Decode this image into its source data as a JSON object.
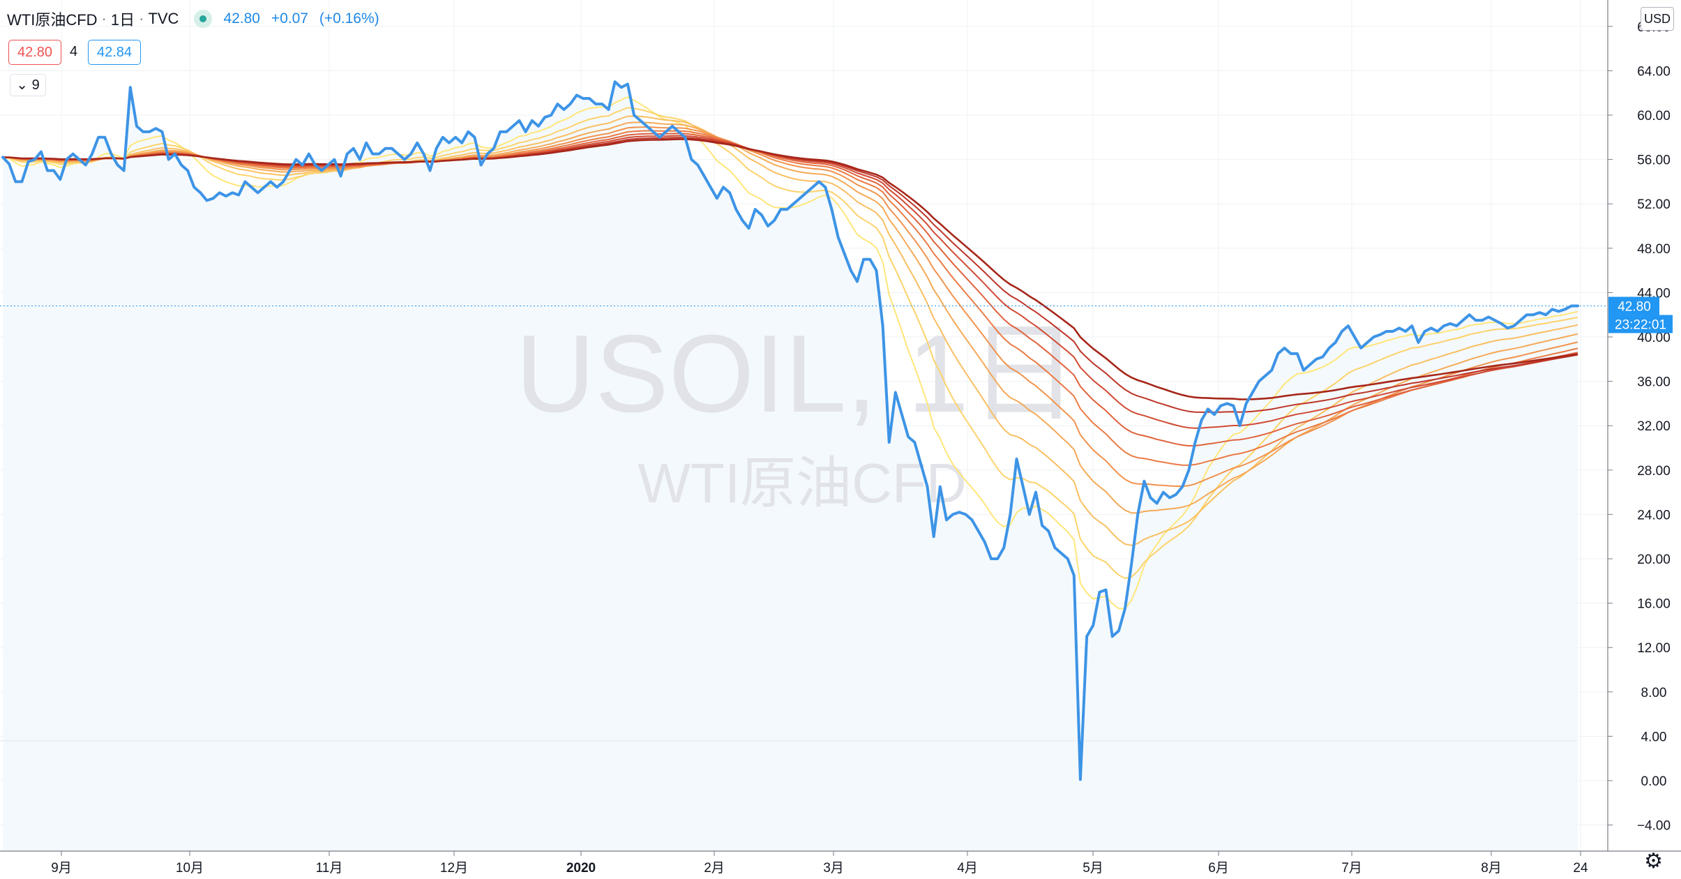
{
  "header": {
    "symbol": "WTI原油CFD",
    "interval": "1日",
    "exchange": "TVC",
    "last": "42.80",
    "change": "+0.07",
    "change_pct": "(+0.16%)"
  },
  "quote": {
    "bid": "42.80",
    "spread": "4",
    "ask": "42.84"
  },
  "indicator": {
    "label": "9"
  },
  "currency": "USD",
  "watermark": {
    "main": "USOIL, 1日",
    "sub": "WTI原油CFD"
  },
  "price_tag": {
    "value": "42.80",
    "countdown": "23:22:01"
  },
  "colors": {
    "price_line": "#3d94e6",
    "area_fill": "#f4f9fd",
    "ribbon": [
      "#ffe67a",
      "#fcd36b",
      "#f9bf62",
      "#f5a957",
      "#f1924c",
      "#ea7a44",
      "#e0623c",
      "#d14a33",
      "#bd3528",
      "#a62619"
    ]
  },
  "chart_data": {
    "type": "line",
    "x_labels": [
      "9月",
      "10月",
      "11月",
      "12月",
      "2020",
      "2月",
      "3月",
      "4月",
      "5月",
      "6月",
      "7月",
      "8月",
      "24"
    ],
    "y_ticks": [
      "68.00",
      "64.00",
      "60.00",
      "56.00",
      "52.00",
      "48.00",
      "44.00",
      "40.00",
      "36.00",
      "32.00",
      "28.00",
      "24.00",
      "20.00",
      "16.00",
      "12.00",
      "8.00",
      "4.00",
      "0.00",
      "−4.00"
    ],
    "ylim": [
      -6.5,
      68.8
    ],
    "series": [
      {
        "values": [
          56.2,
          55.6,
          54.0,
          54.0,
          55.8,
          56.0,
          56.7,
          55.0,
          55.0,
          54.2,
          56.0,
          56.5,
          56.0,
          55.5,
          56.5,
          58.0,
          58.0,
          56.5,
          55.5,
          55.0,
          62.5,
          59.0,
          58.5,
          58.5,
          58.8,
          58.5,
          56.0,
          56.5,
          55.5,
          55.0,
          53.5,
          53.0,
          52.3,
          52.5,
          53.0,
          52.7,
          53.0,
          52.8,
          54.0,
          53.5,
          53.0,
          53.5,
          54.0,
          53.5,
          54.0,
          55.0,
          56.0,
          55.5,
          56.5,
          55.5,
          55.0,
          55.5,
          56.0,
          54.5,
          56.5,
          57.0,
          56.0,
          57.5,
          56.5,
          56.5,
          57.0,
          57.0,
          56.5,
          56.0,
          56.5,
          57.5,
          56.5,
          55.0,
          57.0,
          58.0,
          57.5,
          58.0,
          57.5,
          58.5,
          58.0,
          55.5,
          56.5,
          57.0,
          58.5,
          58.5,
          59.0,
          59.5,
          58.5,
          59.5,
          59.0,
          59.8,
          60.0,
          61.0,
          60.5,
          61.0,
          61.8,
          61.5,
          61.5,
          61.0,
          61.0,
          60.5,
          63.0,
          62.5,
          62.8,
          60.0,
          59.5,
          59.0,
          58.5,
          58.0,
          58.5,
          59.0,
          58.5,
          58.0,
          56.0,
          55.5,
          54.5,
          53.5,
          52.5,
          53.5,
          53.0,
          51.5,
          50.5,
          49.8,
          51.5,
          51.0,
          50.0,
          50.5,
          51.5,
          51.5,
          52.0,
          52.5,
          53.0,
          53.5,
          54.0,
          53.5,
          51.5,
          49.0,
          47.5,
          46.0,
          45.0,
          47.0,
          47.0,
          46.0,
          41.0,
          30.5,
          35.0,
          33.0,
          31.0,
          30.5,
          28.5,
          26.5,
          22.0,
          26.5,
          23.5,
          24.0,
          24.2,
          24.0,
          23.5,
          22.5,
          21.5,
          20.0,
          20.0,
          21.0,
          24.0,
          29.0,
          26.5,
          24.0,
          26.0,
          23.0,
          22.5,
          21.0,
          20.5,
          20.0,
          18.5,
          0.1,
          13.0,
          14.0,
          17.0,
          17.2,
          13.0,
          13.5,
          15.5,
          19.5,
          24.0,
          27.0,
          25.5,
          25.0,
          26.0,
          25.5,
          25.8,
          26.5,
          28.0,
          30.5,
          32.5,
          33.5,
          33.0,
          33.8,
          34.0,
          33.8,
          32.0,
          34.0,
          35.0,
          36.0,
          36.5,
          37.0,
          38.5,
          39.0,
          38.5,
          38.5,
          37.0,
          37.5,
          38.0,
          38.2,
          39.0,
          39.5,
          40.5,
          41.0,
          40.0,
          39.0,
          39.5,
          40.0,
          40.2,
          40.5,
          40.5,
          40.8,
          40.5,
          41.0,
          39.5,
          40.5,
          40.8,
          40.5,
          41.0,
          41.2,
          41.0,
          41.5,
          42.0,
          41.5,
          41.5,
          41.8,
          41.5,
          41.2,
          40.8,
          41.0,
          41.5,
          42.0,
          42.0,
          42.2,
          42.0,
          42.5,
          42.3,
          42.5,
          42.8,
          42.8
        ]
      }
    ],
    "ribbon_periods": [
      10,
      20,
      30,
      40,
      50,
      60,
      70,
      80,
      90,
      100
    ]
  }
}
